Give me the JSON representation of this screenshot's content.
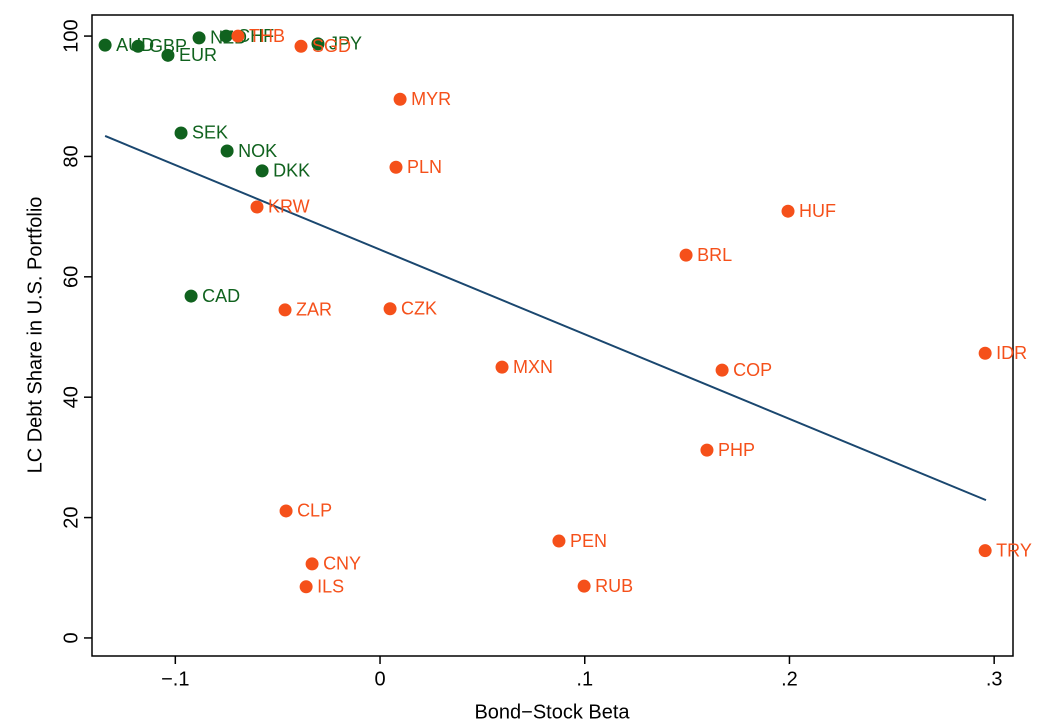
{
  "chart_data": {
    "type": "scatter",
    "x_label": "Bond−Stock Beta",
    "y_label": "LC Debt Share in U.S. Portfolio",
    "xlim": [
      -0.1407,
      0.3092
    ],
    "ylim": [
      -3.0,
      103.5
    ],
    "xticks": [
      {
        "value": -0.1,
        "label": "−.1"
      },
      0,
      {
        "value": 0.1,
        "label": ".1"
      },
      {
        "value": 0.2,
        "label": ".2"
      },
      {
        "value": 0.3,
        "label": ".3"
      }
    ],
    "yticks": [
      0,
      20,
      40,
      60,
      80,
      100
    ],
    "series": [
      {
        "color": "#10621e",
        "labels": [
          "AUD",
          "GBP",
          "EUR",
          "NZD",
          "CHF",
          "JPY",
          "SEK",
          "NOK",
          "DKK",
          "CAD"
        ],
        "x": [
          -0.1343,
          -0.1182,
          -0.1036,
          -0.0884,
          -0.0752,
          -0.0303,
          -0.0972,
          -0.0747,
          -0.0576,
          -0.0923
        ],
        "y": [
          98.5,
          98.3,
          96.8,
          99.7,
          100.0,
          98.7,
          83.9,
          80.9,
          77.6,
          56.8
        ]
      },
      {
        "color": "#f5501a",
        "labels": [
          "THB",
          "SGD",
          "MYR",
          "PLN",
          "KRW",
          "HUF",
          "BRL",
          "ZAR",
          "CZK",
          "MXN",
          "COP",
          "IDR",
          "PHP",
          "CLP",
          "PEN",
          "TRY",
          "CNY",
          "ILS",
          "RUB"
        ],
        "x": [
          -0.0694,
          -0.0386,
          0.0098,
          0.0078,
          -0.0601,
          0.1993,
          0.1495,
          -0.0464,
          0.0049,
          0.0596,
          0.1671,
          0.2956,
          0.1597,
          -0.0459,
          0.0874,
          0.2956,
          -0.0332,
          -0.0361,
          0.0997
        ],
        "y": [
          100.0,
          98.3,
          89.5,
          78.2,
          71.6,
          70.9,
          63.6,
          54.5,
          54.7,
          45.0,
          44.5,
          47.3,
          31.2,
          21.1,
          16.1,
          14.5,
          12.3,
          8.5,
          8.6
        ]
      }
    ],
    "fit_line": {
      "color": "#1a476f",
      "x": [
        -0.1343,
        0.296
      ],
      "y": [
        83.4,
        22.9
      ]
    }
  }
}
